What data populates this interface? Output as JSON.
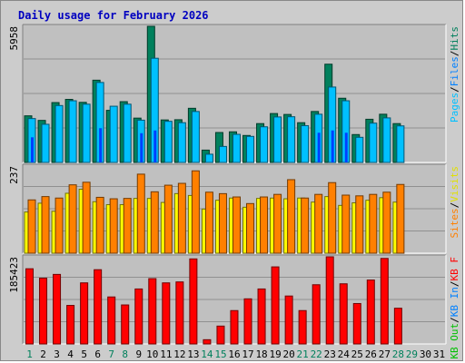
{
  "chart_data": {
    "type": "bar",
    "title": "Daily usage for February 2026",
    "x": [
      "1",
      "2",
      "3",
      "4",
      "5",
      "6",
      "7",
      "8",
      "9",
      "10",
      "11",
      "12",
      "13",
      "14",
      "15",
      "16",
      "17",
      "18",
      "19",
      "20",
      "21",
      "22",
      "23",
      "24",
      "25",
      "26",
      "27",
      "28",
      "29",
      "30",
      "31"
    ],
    "weekend_days": [
      "1",
      "7",
      "8",
      "14",
      "15",
      "21",
      "22",
      "28",
      "29"
    ],
    "panels": [
      {
        "max_label": "5958",
        "ymax": 5958,
        "legend": [
          {
            "text": "Hits",
            "color": "#00805c"
          },
          {
            "text": "Files",
            "color": "#0080ff"
          },
          {
            "text": "Pages",
            "color": "#00c0ff"
          }
        ],
        "series": [
          {
            "name": "Hits",
            "color": "#00805c",
            "values": [
              2040,
              1840,
              2620,
              2760,
              2630,
              3600,
              2280,
              2660,
              1940,
              5958,
              1860,
              1870,
              2370,
              540,
              1310,
              1340,
              1180,
              1700,
              2140,
              2100,
              1740,
              2230,
              4300,
              2810,
              1220,
              1890,
              2110,
              1700,
              0,
              0,
              0
            ]
          },
          {
            "name": "Files",
            "color": "#00c0ff",
            "values": [
              1920,
              1670,
              2490,
              2700,
              2550,
              3500,
              2460,
              2550,
              1850,
              4560,
              1800,
              1740,
              2230,
              360,
              700,
              1230,
              1140,
              1560,
              1990,
              2000,
              1610,
              2110,
              3300,
              2700,
              1100,
              1720,
              1950,
              1600,
              0,
              0,
              0
            ]
          },
          {
            "name": "Pages",
            "color": "#0040ff",
            "values": [
              1100,
              0,
              0,
              0,
              0,
              1500,
              0,
              0,
              1280,
              1400,
              0,
              0,
              0,
              0,
              0,
              0,
              0,
              0,
              0,
              0,
              0,
              1300,
              1400,
              1300,
              0,
              0,
              0,
              0,
              0,
              0,
              0
            ]
          }
        ]
      },
      {
        "max_label": "237",
        "ymax": 237,
        "legend": [
          {
            "text": "Visits",
            "color": "#e0e000"
          },
          {
            "text": "Sites",
            "color": "#ff8000"
          }
        ],
        "series": [
          {
            "name": "Visits",
            "color": "#ffff00",
            "values": [
              112,
              136,
              114,
              163,
              174,
              140,
              132,
              132,
              149,
              149,
              138,
              162,
              157,
              120,
              144,
              150,
              125,
              149,
              150,
              148,
              150,
              139,
              154,
              130,
              137,
              144,
              151,
              139,
              0,
              0,
              0
            ]
          },
          {
            "name": "Sites",
            "color": "#ff8000",
            "values": [
              145,
              154,
              150,
              186,
              193,
              152,
              148,
              149,
              215,
              167,
              185,
              190,
              224,
              166,
              162,
              153,
              135,
              153,
              160,
              200,
              150,
              160,
              192,
              158,
              156,
              160,
              166,
              187,
              0,
              0,
              0
            ]
          }
        ]
      },
      {
        "max_label": "185423",
        "ymax": 185423,
        "legend": [
          {
            "text": "KB F",
            "color": "#ff0000"
          },
          {
            "text": "KB In",
            "color": "#0080ff"
          },
          {
            "text": "KB Out",
            "color": "#00c000"
          }
        ],
        "series": [
          {
            "name": "KB F",
            "color": "#ff0000",
            "values": [
              160000,
              140000,
              148000,
              82000,
              130000,
              158000,
              100000,
              83000,
              117000,
              139000,
              130000,
              132000,
              181000,
              9000,
              38000,
              71000,
              96000,
              117000,
              164000,
              102000,
              71000,
              126000,
              185423,
              128000,
              86000,
              136000,
              182000,
              76000,
              0,
              0,
              0
            ]
          }
        ]
      }
    ]
  }
}
